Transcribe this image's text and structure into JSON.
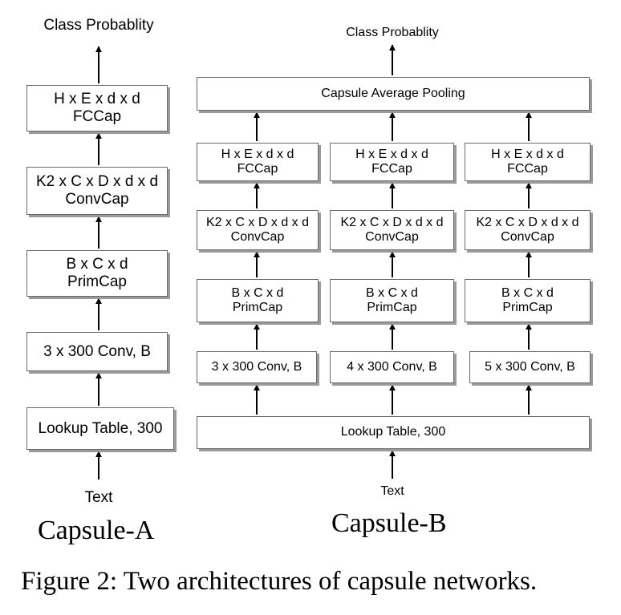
{
  "capsule_a": {
    "title": "Capsule-A",
    "input": "Text",
    "output": "Class Probablity",
    "lookup": "Lookup Table, 300",
    "conv": "3 x 300 Conv, B",
    "primcap": {
      "dims": "B x C x d",
      "name": "PrimCap"
    },
    "convcap": {
      "dims": "K2 x C x D x d x d",
      "name": "ConvCap"
    },
    "fccap": {
      "dims": "H x E x d x d",
      "name": "FCCap"
    }
  },
  "capsule_b": {
    "title": "Capsule-B",
    "input": "Text",
    "output": "Class Probablity",
    "lookup": "Lookup Table, 300",
    "pooling": "Capsule Average Pooling",
    "branches": [
      {
        "conv": "3 x 300 Conv, B",
        "primcap": {
          "dims": "B x C x d",
          "name": "PrimCap"
        },
        "convcap": {
          "dims": "K2 x C x D x d x d",
          "name": "ConvCap"
        },
        "fccap": {
          "dims": "H x E x d x d",
          "name": "FCCap"
        }
      },
      {
        "conv": "4 x 300 Conv, B",
        "primcap": {
          "dims": "B x C x d",
          "name": "PrimCap"
        },
        "convcap": {
          "dims": "K2 x C x D x d x d",
          "name": "ConvCap"
        },
        "fccap": {
          "dims": "H x E x d x d",
          "name": "FCCap"
        }
      },
      {
        "conv": "5 x 300 Conv, B",
        "primcap": {
          "dims": "B x C x d",
          "name": "PrimCap"
        },
        "convcap": {
          "dims": "K2 x C x D x d x d",
          "name": "ConvCap"
        },
        "fccap": {
          "dims": "H x E x d x d",
          "name": "FCCap"
        }
      }
    ]
  },
  "figure_caption": "Figure 2: Two architectures of capsule networks."
}
